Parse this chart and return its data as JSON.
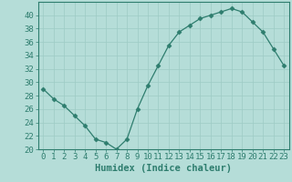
{
  "x": [
    0,
    1,
    2,
    3,
    4,
    5,
    6,
    7,
    8,
    9,
    10,
    11,
    12,
    13,
    14,
    15,
    16,
    17,
    18,
    19,
    20,
    21,
    22,
    23
  ],
  "y": [
    29,
    27.5,
    26.5,
    25,
    23.5,
    21.5,
    21,
    20,
    21.5,
    26,
    29.5,
    32.5,
    35.5,
    37.5,
    38.5,
    39.5,
    40,
    40.5,
    41,
    40.5,
    39,
    37.5,
    35,
    32.5
  ],
  "line_color": "#2e7d6e",
  "marker": "D",
  "bg_color": "#b5ddd8",
  "grid_color": "#9ecbc5",
  "xlabel": "Humidex (Indice chaleur)",
  "ylim": [
    20,
    42
  ],
  "yticks": [
    20,
    22,
    24,
    26,
    28,
    30,
    32,
    34,
    36,
    38,
    40
  ],
  "xlim": [
    -0.5,
    23.5
  ],
  "xticks": [
    0,
    1,
    2,
    3,
    4,
    5,
    6,
    7,
    8,
    9,
    10,
    11,
    12,
    13,
    14,
    15,
    16,
    17,
    18,
    19,
    20,
    21,
    22,
    23
  ],
  "tick_color": "#2e7d6e",
  "axis_color": "#2e7d6e",
  "label_fontsize": 6.5,
  "xlabel_fontsize": 7.5
}
